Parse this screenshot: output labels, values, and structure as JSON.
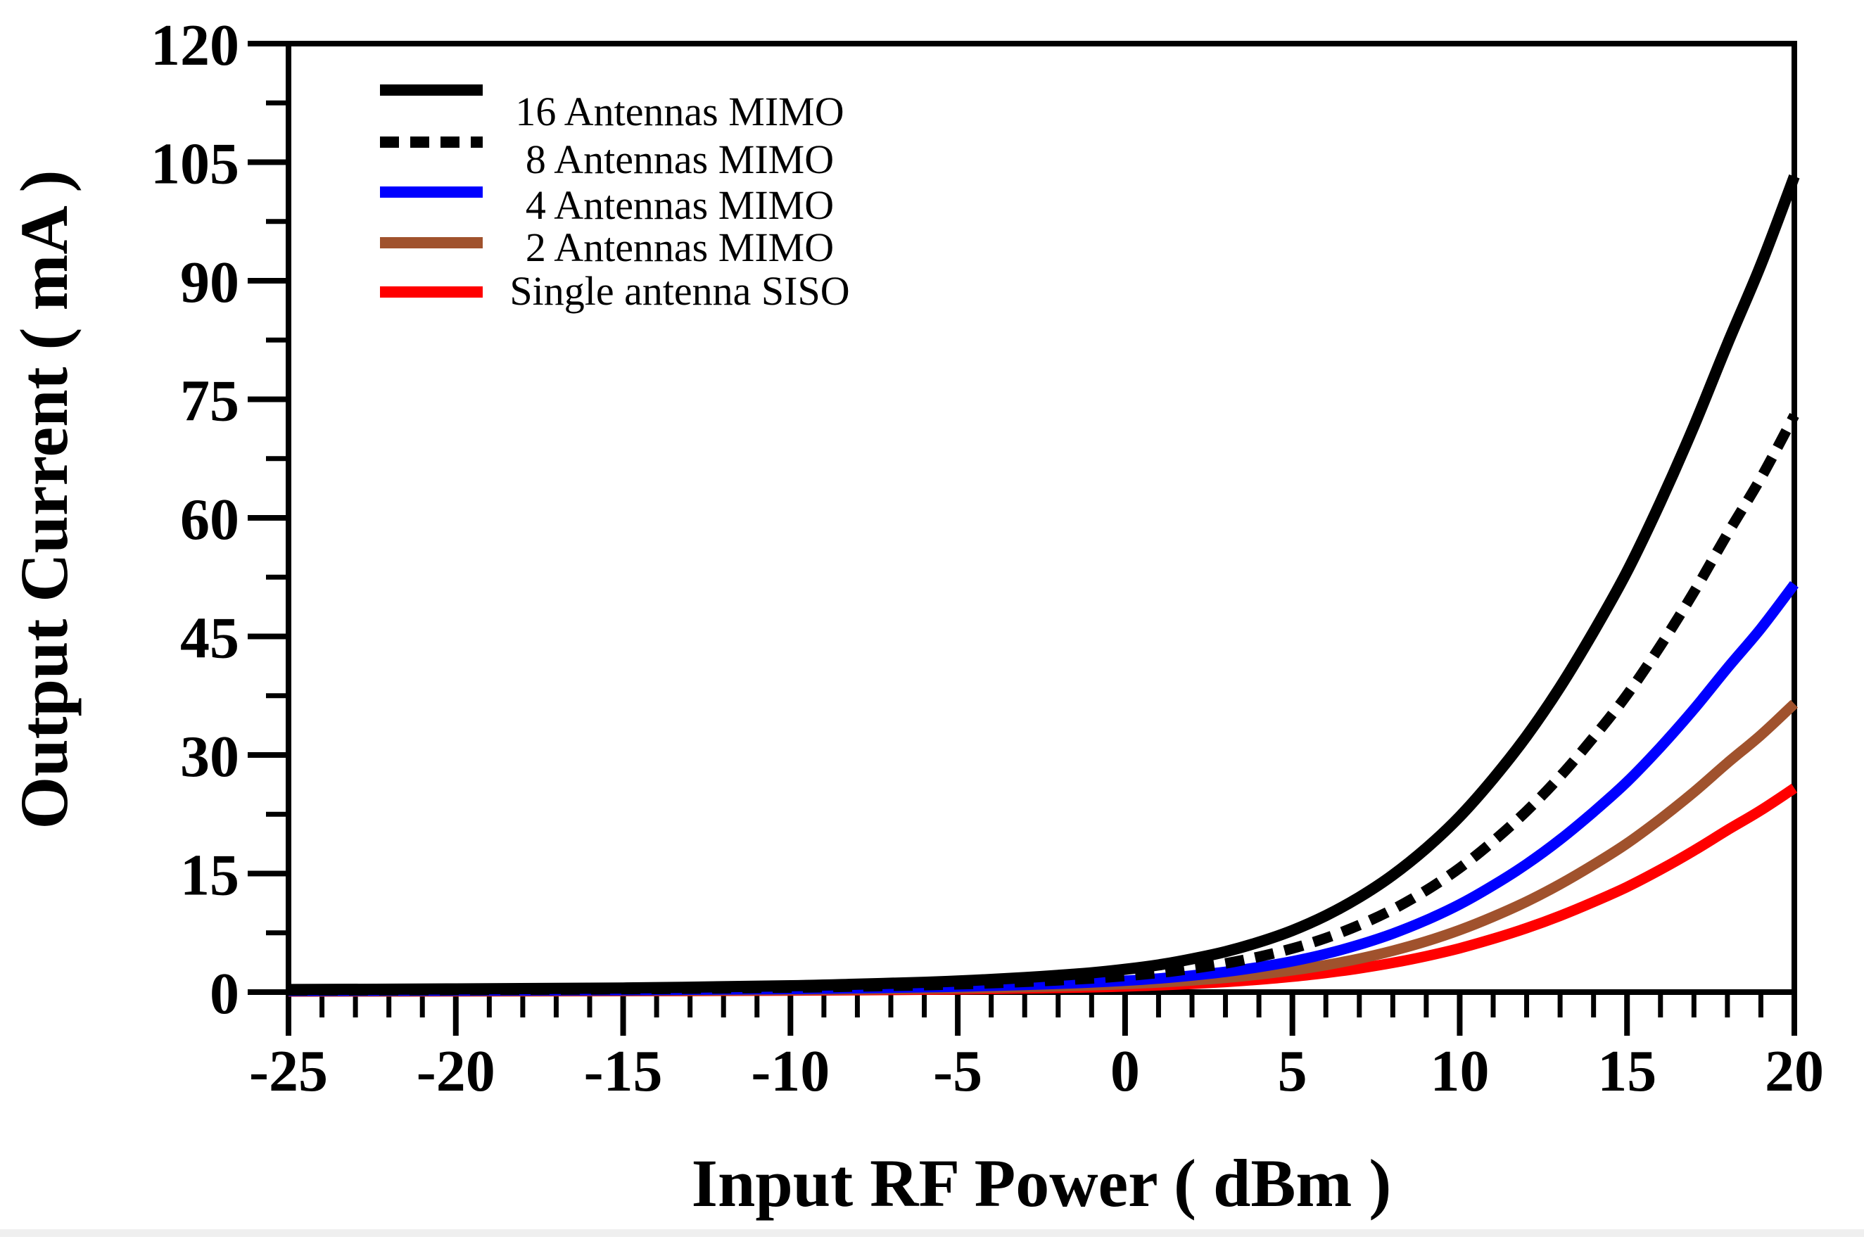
{
  "figure": {
    "background": "#ffffff",
    "bottom_strip_color": "#efefef",
    "axis_color": "#000000"
  },
  "chart_data": {
    "type": "line",
    "title": "",
    "xlabel": "Input RF Power ( dBm )",
    "ylabel": "Output Current ( mA )",
    "xlim": [
      -25,
      20
    ],
    "ylim": [
      0,
      120
    ],
    "x_ticks": [
      -25,
      -20,
      -15,
      -10,
      -5,
      0,
      5,
      10,
      15,
      20
    ],
    "x_minor_step": 1,
    "y_ticks": [
      0,
      15,
      30,
      45,
      60,
      75,
      90,
      105,
      120
    ],
    "y_minor_step": 7.5,
    "grid": false,
    "legend_position": "upper-left-inside",
    "x": [
      -25,
      -20,
      -15,
      -10,
      -8,
      -6,
      -5,
      -4,
      -3,
      -2,
      -1,
      0,
      1,
      2,
      3,
      4,
      5,
      6,
      7,
      8,
      9,
      10,
      11,
      12,
      13,
      14,
      15,
      16,
      17,
      18,
      19,
      20
    ],
    "series": [
      {
        "name": "16 Antennas MIMO",
        "color": "#000000",
        "style": "solid",
        "arrow": true,
        "values": [
          0.32,
          0.4,
          0.52,
          0.8,
          1.0,
          1.24,
          1.4,
          1.6,
          1.84,
          2.12,
          2.44,
          2.88,
          3.44,
          4.2,
          5.12,
          6.32,
          7.8,
          9.68,
          12.0,
          14.8,
          18.2,
          22.2,
          27.0,
          32.4,
          38.6,
          45.6,
          53.2,
          62.0,
          71.6,
          82.0,
          92.0,
          103.2
        ]
      },
      {
        "name": "8 Antennas MIMO",
        "color": "#000000",
        "style": "dashed",
        "arrow": true,
        "values": [
          0.23,
          0.28,
          0.37,
          0.57,
          0.71,
          0.88,
          0.99,
          1.13,
          1.3,
          1.5,
          1.73,
          2.04,
          2.43,
          2.97,
          3.62,
          4.47,
          5.52,
          6.84,
          8.48,
          10.46,
          12.87,
          15.7,
          19.09,
          22.91,
          27.29,
          32.24,
          37.61,
          43.83,
          50.62,
          57.97,
          65.04,
          72.96
        ]
      },
      {
        "name": "4 Antennas MIMO",
        "color": "#0000ff",
        "style": "solid",
        "arrow": false,
        "values": [
          0.16,
          0.2,
          0.26,
          0.4,
          0.5,
          0.62,
          0.7,
          0.8,
          0.92,
          1.06,
          1.22,
          1.44,
          1.72,
          2.1,
          2.56,
          3.16,
          3.9,
          4.84,
          6.0,
          7.4,
          9.1,
          11.1,
          13.5,
          16.2,
          19.3,
          22.8,
          26.6,
          31.0,
          35.8,
          41.0,
          46.0,
          51.6
        ]
      },
      {
        "name": "2 Antennas MIMO",
        "color": "#a0522d",
        "style": "solid",
        "arrow": false,
        "values": [
          0.11,
          0.14,
          0.18,
          0.28,
          0.35,
          0.44,
          0.49,
          0.57,
          0.65,
          0.75,
          0.86,
          1.02,
          1.22,
          1.48,
          1.81,
          2.23,
          2.76,
          3.42,
          4.24,
          5.23,
          6.43,
          7.85,
          9.54,
          11.45,
          13.65,
          16.12,
          18.81,
          21.92,
          25.31,
          28.99,
          32.52,
          36.48
        ]
      },
      {
        "name": "Single antenna SISO",
        "color": "#ff0000",
        "style": "solid",
        "arrow": false,
        "values": [
          0.08,
          0.1,
          0.13,
          0.2,
          0.25,
          0.31,
          0.35,
          0.4,
          0.46,
          0.53,
          0.61,
          0.72,
          0.86,
          1.05,
          1.28,
          1.58,
          1.95,
          2.42,
          3.0,
          3.7,
          4.55,
          5.55,
          6.75,
          8.1,
          9.65,
          11.4,
          13.3,
          15.5,
          17.9,
          20.5,
          23.0,
          25.8
        ]
      }
    ]
  }
}
